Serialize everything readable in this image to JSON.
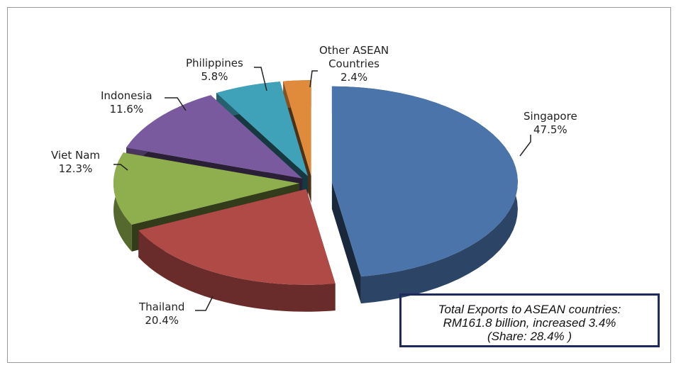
{
  "chart_data": {
    "type": "pie",
    "style": "3d-exploded",
    "categories": [
      "Singapore",
      "Thailand",
      "Viet Nam",
      "Indonesia",
      "Philippines",
      "Other ASEAN Countries"
    ],
    "values": [
      47.5,
      20.4,
      12.3,
      11.6,
      5.8,
      2.4
    ],
    "data_labels": [
      "47.5%",
      "20.4%",
      "12.3%",
      "11.6%",
      "5.8%",
      "2.4%"
    ],
    "colors": [
      "#4a74aa",
      "#b04a47",
      "#8fae4e",
      "#7a5a9e",
      "#3fa2b8",
      "#e08a3c"
    ],
    "annotation": {
      "line1": "Total Exports to ASEAN countries:",
      "line2": "RM161.8 billion, increased 3.4%",
      "line3": "(Share: 28.4% )"
    }
  },
  "labels": {
    "singapore": "Singapore",
    "thailand": "Thailand",
    "vietnam": "Viet Nam",
    "indonesia": "Indonesia",
    "philippines": "Philippines",
    "other1": "Other ASEAN",
    "other2": "Countries"
  }
}
